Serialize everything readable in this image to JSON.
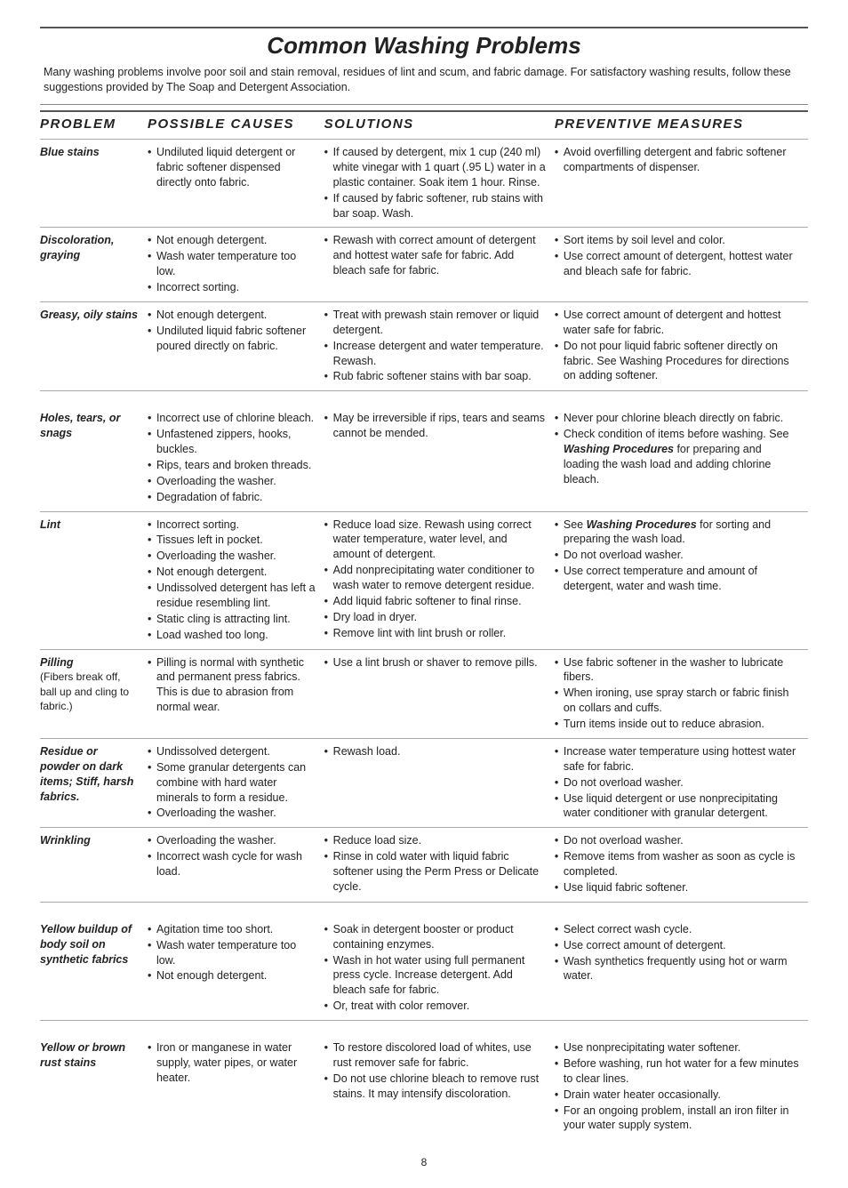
{
  "title": "Common Washing Problems",
  "intro": "Many washing problems involve poor soil and stain removal, residues of lint and scum, and fabric damage. For satisfactory washing results, follow these suggestions provided by The Soap and Detergent Association.",
  "headers": {
    "problem": "PROBLEM",
    "causes": "POSSIBLE CAUSES",
    "solutions": "SOLUTIONS",
    "preventive": "PREVENTIVE MEASURES"
  },
  "rows": [
    {
      "problem": "Blue stains",
      "problem_sub": "",
      "causes": [
        "Undiluted liquid detergent or fabric softener dispensed directly onto fabric."
      ],
      "solutions": [
        "If caused by detergent, mix 1 cup (240 ml) white vinegar with 1 quart (.95 L) water in a plastic container. Soak item 1 hour. Rinse.",
        "If caused by fabric softener, rub stains with bar soap. Wash."
      ],
      "preventive": [
        "Avoid overfilling detergent and fabric softener compartments of dispenser."
      ]
    },
    {
      "problem": "Discoloration, graying",
      "problem_sub": "",
      "causes": [
        "Not enough detergent.",
        "Wash water temperature too low.",
        "Incorrect sorting."
      ],
      "solutions": [
        "Rewash with correct amount of detergent and hottest water safe for fabric. Add bleach safe for fabric."
      ],
      "preventive": [
        "Sort items by soil level and color.",
        "Use correct amount of detergent, hottest water and bleach safe for fabric."
      ]
    },
    {
      "problem": "Greasy, oily stains",
      "problem_sub": "",
      "causes": [
        "Not enough detergent.",
        "Undiluted liquid fabric softener poured directly on fabric."
      ],
      "solutions": [
        "Treat with prewash stain remover or liquid detergent.",
        "Increase detergent and water temperature. Rewash.",
        "Rub fabric softener stains with bar soap."
      ],
      "preventive": [
        "Use correct  amount of detergent and hottest water safe for fabric.",
        "Do not pour liquid fabric softener directly on fabric. See Washing Procedures for directions on adding softener."
      ]
    },
    {
      "problem": "Holes, tears, or snags",
      "problem_sub": "",
      "causes": [
        "Incorrect use of chlorine bleach.",
        "Unfastened zippers, hooks, buckles.",
        "Rips, tears and broken threads.",
        "Overloading the washer.",
        "Degradation of fabric."
      ],
      "solutions": [
        "May be irreversible if rips, tears and seams cannot be mended."
      ],
      "preventive_html": "<li>Never pour chlorine bleach directly on fabric.</li><li>Check condition of items before washing. See <span class=\"bi\">Washing Procedures</span> for preparing and loading the wash load and adding chlorine bleach.</li>"
    },
    {
      "problem": "Lint",
      "problem_sub": "",
      "causes": [
        "Incorrect sorting.",
        "Tissues left in pocket.",
        "Overloading the washer.",
        "Not enough detergent.",
        "Undissolved detergent has left a residue resembling lint.",
        "Static cling is attracting lint.",
        "Load washed too long."
      ],
      "solutions": [
        "Reduce load size. Rewash using correct water temperature, water level, and amount of detergent.",
        "Add  nonprecipitating water conditioner to wash water to remove detergent residue.",
        "Add liquid fabric softener to final rinse.",
        "Dry load in dryer.",
        "Remove lint with lint brush or roller."
      ],
      "preventive_html": "<li>See <span class=\"bi\">Washing Procedures</span> for sorting and preparing the wash load.</li><li>Do not overload washer.</li><li>Use correct temperature and amount of detergent, water and wash time.</li>"
    },
    {
      "problem": "Pilling",
      "problem_sub": "(Fibers break off, ball up and cling to fabric.)",
      "causes": [
        "Pilling is normal with synthetic and permanent press fabrics. This is due to abrasion from normal wear."
      ],
      "solutions": [
        " Use a lint brush or shaver to remove pills."
      ],
      "preventive": [
        "Use fabric softener in the washer to lubricate fibers.",
        "When ironing, use spray starch or fabric finish on collars  and cuffs.",
        "Turn items inside out to reduce abrasion."
      ]
    },
    {
      "problem": "Residue or powder on dark items;\nStiff, harsh fabrics.",
      "problem_sub": "",
      "causes": [
        "Undissolved detergent.",
        " Some granular detergents can combine with hard water minerals to form a residue.",
        "Overloading the washer."
      ],
      "solutions": [
        " Rewash load."
      ],
      "preventive": [
        "Increase water temperature using hottest water safe for fabric.",
        "Do not overload washer.",
        "Use liquid detergent or use nonprecipitating water conditioner with granular detergent."
      ]
    },
    {
      "problem": "Wrinkling",
      "problem_sub": "",
      "causes": [
        "Overloading the washer.",
        "Incorrect wash cycle for wash load."
      ],
      "solutions": [
        "Reduce load size.",
        "Rinse in cold water with liquid fabric softener using the Perm Press or Delicate cycle."
      ],
      "preventive": [
        "Do not overload washer.",
        "Remove items from washer as soon as cycle is completed.",
        "Use liquid fabric softener."
      ]
    },
    {
      "problem": "Yellow buildup of body soil on synthetic fabrics",
      "problem_sub": "",
      "causes": [
        "Agitation time too short.",
        "Wash water temperature too low.",
        "Not enough detergent."
      ],
      "solutions": [
        "Soak in detergent booster or product containing enzymes.",
        "Wash in hot water  using full permanent press cycle. Increase detergent.  Add bleach safe for fabric.",
        "Or, treat with color remover."
      ],
      "preventive": [
        "Select correct wash cycle.",
        "Use correct amount of detergent.",
        "Wash synthetics frequently using hot or warm water."
      ]
    },
    {
      "problem": "Yellow or brown rust stains",
      "problem_sub": "",
      "causes": [
        "Iron or manganese in water supply, water pipes, or water heater."
      ],
      "solutions": [
        "To restore discolored load of whites, use rust remover safe for fabric.",
        "Do not use chlorine bleach to remove rust stains. It may intensify discoloration."
      ],
      "preventive": [
        "Use nonprecipitating water softener.",
        "Before washing, run hot water for a few minutes to clear lines.",
        "Drain water heater occasionally.",
        "For an ongoing problem, install an iron filter in your water supply system."
      ],
      "last": true
    }
  ],
  "page_number": "8"
}
